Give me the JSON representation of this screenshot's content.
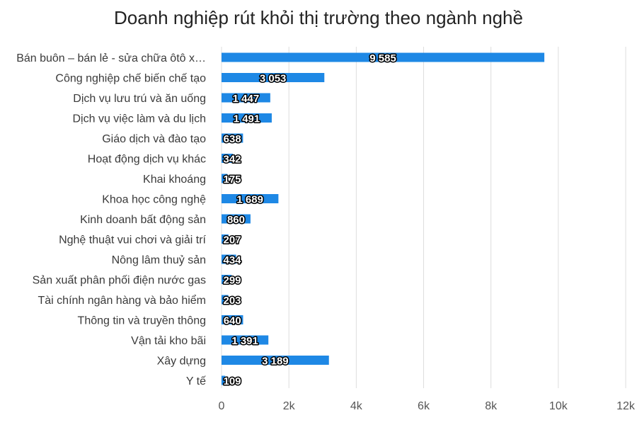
{
  "chart_data": {
    "type": "bar",
    "orientation": "horizontal",
    "title": "Doanh nghiệp rút khỏi thị trường theo ngành nghề",
    "categories": [
      "Bán buôn – bán lẻ - sửa chữa ôtô x…",
      "Công nghiệp chế biến chế tạo",
      "Dịch vụ lưu trú và ăn uống",
      "Dịch vụ việc làm và du lịch",
      "Giáo dịch và đào tạo",
      "Hoạt động dịch vụ khác",
      "Khai khoáng",
      "Khoa học công nghệ",
      "Kinh doanh bất động sản",
      "Nghệ thuật vui chơi và giải trí",
      "Nông lâm thuỷ sản",
      "Sản xuất phân phối điện nước gas",
      "Tài chính ngân hàng và bảo hiểm",
      "Thông tin và truyền thông",
      "Vận tải kho bãi",
      "Xây dựng",
      "Y tế"
    ],
    "values": [
      9585,
      3053,
      1447,
      1491,
      638,
      342,
      175,
      1689,
      860,
      207,
      434,
      299,
      203,
      640,
      1391,
      3189,
      109
    ],
    "value_labels": [
      "9 585",
      "3 053",
      "1 447",
      "1 491",
      "638",
      "342",
      "175",
      "1 689",
      "860",
      "207",
      "434",
      "299",
      "203",
      "640",
      "1 391",
      "3 189",
      "109"
    ],
    "xlim": [
      0,
      12000
    ],
    "x_ticks": [
      0,
      2000,
      4000,
      6000,
      8000,
      10000,
      12000
    ],
    "x_tick_labels": [
      "0",
      "2k",
      "4k",
      "6k",
      "8k",
      "10k",
      "12k"
    ],
    "xlabel": "",
    "ylabel": "",
    "grid": true,
    "bar_color": "#1e88e5",
    "grid_color": "#dddddd"
  }
}
